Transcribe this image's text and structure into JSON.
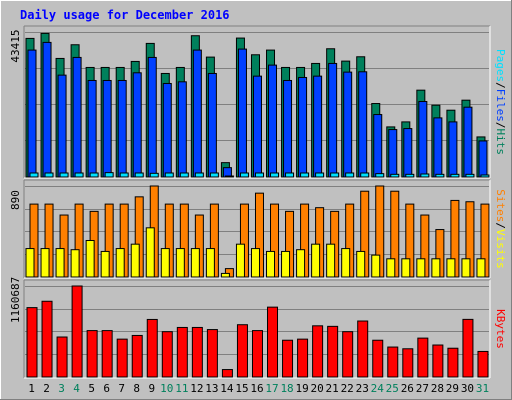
{
  "chart_data": [
    {
      "type": "bar",
      "title": "Daily usage for December 2016",
      "ymax_label": "43415",
      "ylim": [
        0,
        43415
      ],
      "categories": [
        "1",
        "2",
        "3",
        "4",
        "5",
        "6",
        "7",
        "8",
        "9",
        "10",
        "11",
        "12",
        "13",
        "14",
        "15",
        "16",
        "17",
        "18",
        "19",
        "20",
        "21",
        "22",
        "23",
        "24",
        "25",
        "26",
        "27",
        "28",
        "29",
        "30",
        "31"
      ],
      "weekend_days": [
        "3",
        "4",
        "10",
        "11",
        "17",
        "18",
        "24",
        "25",
        "31"
      ],
      "side_label_parts": [
        "Pages",
        "/",
        "Files",
        "/",
        "Hits"
      ],
      "series": [
        {
          "name": "Hits",
          "values": [
            41500,
            43000,
            35500,
            39600,
            32800,
            32800,
            32800,
            34600,
            40000,
            31000,
            32800,
            42300,
            35900,
            4300,
            41600,
            36600,
            38000,
            32800,
            32800,
            34000,
            38400,
            34700,
            36000,
            22000,
            15000,
            16500,
            26000,
            21500,
            20000,
            23000,
            12000
          ]
        },
        {
          "name": "Files",
          "values": [
            38000,
            40300,
            30500,
            35800,
            28900,
            28900,
            28900,
            31200,
            35800,
            28000,
            28500,
            38000,
            31000,
            2800,
            38300,
            30200,
            33500,
            28900,
            29800,
            30200,
            34000,
            31400,
            31500,
            18700,
            14200,
            14500,
            22600,
            17700,
            16500,
            20900,
            10800
          ]
        },
        {
          "name": "Pages",
          "values": [
            1200,
            1200,
            1200,
            1200,
            1200,
            1300,
            1200,
            1200,
            1100,
            1200,
            1200,
            1200,
            1200,
            200,
            1200,
            1200,
            1200,
            1200,
            1200,
            1200,
            1200,
            1200,
            1200,
            1000,
            800,
            800,
            900,
            800,
            800,
            800,
            600
          ]
        }
      ]
    },
    {
      "type": "bar",
      "ymax_label": "890",
      "ylim": [
        0,
        890
      ],
      "side_label_parts": [
        "Sites",
        "/",
        "Visits"
      ],
      "series": [
        {
          "name": "Visits",
          "values": [
            713,
            713,
            606,
            713,
            642,
            713,
            713,
            784,
            890,
            713,
            713,
            606,
            713,
            82,
            713,
            820,
            713,
            642,
            713,
            678,
            642,
            713,
            839,
            890,
            839,
            713,
            606,
            464,
            749,
            736,
            713
          ]
        },
        {
          "name": "Sites",
          "values": [
            278,
            278,
            278,
            267,
            357,
            250,
            278,
            321,
            481,
            278,
            278,
            278,
            278,
            35,
            321,
            278,
            250,
            250,
            267,
            321,
            321,
            278,
            250,
            214,
            178,
            178,
            178,
            178,
            178,
            178,
            178
          ]
        }
      ]
    },
    {
      "type": "bar",
      "ymax_label": "1160687",
      "ylim": [
        0,
        1160687
      ],
      "side_label_parts": [
        "KBytes"
      ],
      "series": [
        {
          "name": "KBytes",
          "values": [
            885000,
            966000,
            510000,
            1160687,
            592000,
            592000,
            483000,
            530000,
            734000,
            578000,
            632000,
            632000,
            605000,
            95000,
            667000,
            592000,
            891000,
            469000,
            483000,
            653000,
            646000,
            578000,
            714000,
            469000,
            382000,
            360000,
            496000,
            408000,
            367000,
            735000,
            326000
          ]
        }
      ]
    }
  ],
  "colors": {
    "background": "#c0c0c0",
    "plot_bg": "#c0c0c0",
    "title": "#0000ff",
    "hits": "#00805c",
    "files": "#0040ff",
    "pages": "#00e0ff",
    "visits": "#ff8000",
    "sites": "#ffff00",
    "kbytes": "#ff0000",
    "weekday_label": "#000000",
    "weekend_label": "#00805c"
  }
}
